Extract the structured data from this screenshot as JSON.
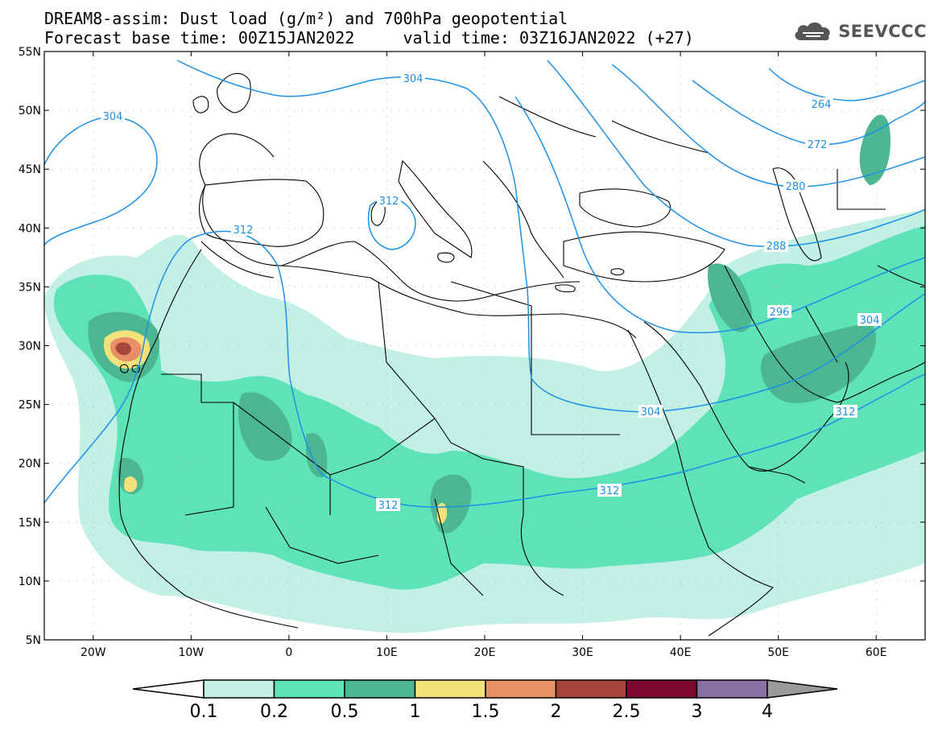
{
  "title": {
    "line1": "DREAM8-assim: Dust load (g/m²) and 700hPa geopotential",
    "line2": "Forecast base time: 00Z15JAN2022     valid time: 03Z16JAN2022 (+27)"
  },
  "logo": {
    "text": "SEEVCCC",
    "icon": "cloud-icon"
  },
  "map": {
    "lat_labels": [
      "55N",
      "50N",
      "45N",
      "40N",
      "35N",
      "30N",
      "25N",
      "20N",
      "15N",
      "10N",
      "5N"
    ],
    "lon_labels": [
      "20W",
      "10W",
      "0",
      "10E",
      "20E",
      "30E",
      "40E",
      "50E",
      "60E"
    ],
    "lat_values": [
      55,
      50,
      45,
      40,
      35,
      30,
      25,
      20,
      15,
      10,
      5
    ],
    "lon_values": [
      -20,
      -10,
      0,
      10,
      20,
      30,
      40,
      50,
      60
    ],
    "lon_range": [
      -25,
      65
    ],
    "lat_range": [
      5,
      55
    ]
  },
  "contours": {
    "labels": [
      "304",
      "304",
      "312",
      "312",
      "264",
      "272",
      "280",
      "288",
      "296",
      "304",
      "304",
      "312",
      "312",
      "312"
    ]
  },
  "colorbar": {
    "ticks": [
      "0.1",
      "0.2",
      "0.5",
      "1",
      "1.5",
      "2",
      "2.5",
      "3",
      "4"
    ],
    "colors": [
      "#c2f0e4",
      "#5ee2b8",
      "#4cb591",
      "#f3e27c",
      "#e98f65",
      "#a7453a",
      "#7c0930",
      "#8a6fa3"
    ],
    "lower_extend_color": "#ffffff",
    "upper_extend_color": "#9a9a9a"
  },
  "colors": {
    "contour_line": "#1e90e6",
    "coastline": "#000000",
    "grid": "#b4b4b4"
  }
}
